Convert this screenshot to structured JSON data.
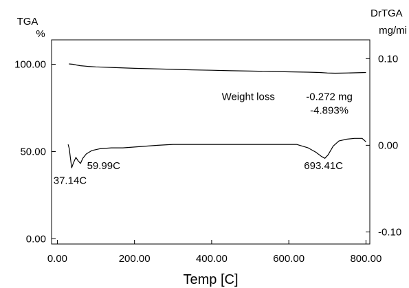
{
  "chart_data": {
    "type": "line",
    "title": "",
    "xlabel": "Temp [C]",
    "left_axis": {
      "label_line1": "TGA",
      "label_line2": "%",
      "ylim": [
        -3,
        114
      ],
      "ticks": [
        0,
        50,
        100
      ],
      "tick_labels": [
        "0.00",
        "50.00",
        "100.00"
      ]
    },
    "right_axis": {
      "label_line1": "DrTGA",
      "label_line2": "mg/mi",
      "ylim": [
        -0.114,
        0.1217
      ],
      "ticks": [
        -0.1,
        0,
        0.1
      ],
      "tick_labels": [
        "-0.10",
        "0.00",
        "0.10"
      ]
    },
    "xlim": [
      -15,
      810
    ],
    "x_ticks": [
      0,
      200,
      400,
      600,
      800
    ],
    "x_tick_labels": [
      "0.00",
      "200.00",
      "400.00",
      "600.00",
      "800.00"
    ],
    "grid": false,
    "series": [
      {
        "axis": "left",
        "x": [
          30,
          40,
          50,
          60,
          80,
          100,
          150,
          200,
          250,
          300,
          350,
          400,
          450,
          500,
          550,
          600,
          650,
          680,
          700,
          720,
          750,
          800
        ],
        "y": [
          100.2,
          100.0,
          99.6,
          99.2,
          98.8,
          98.5,
          98.1,
          97.7,
          97.4,
          97.1,
          96.8,
          96.6,
          96.3,
          96.1,
          95.9,
          95.7,
          95.5,
          95.3,
          95.0,
          94.9,
          95.0,
          95.3
        ]
      },
      {
        "axis": "right",
        "x": [
          28,
          31,
          34,
          37.14,
          42,
          48,
          54,
          59.99,
          66,
          75,
          90,
          110,
          140,
          170,
          200,
          230,
          260,
          300,
          340,
          380,
          420,
          460,
          500,
          540,
          580,
          620,
          650,
          670,
          685,
          693.41,
          702,
          715,
          730,
          750,
          770,
          790,
          800
        ],
        "y": [
          0.001,
          -0.004,
          -0.015,
          -0.026,
          -0.02,
          -0.014,
          -0.018,
          -0.021,
          -0.015,
          -0.01,
          -0.006,
          -0.004,
          -0.003,
          -0.003,
          -0.002,
          -0.001,
          0.0,
          0.001,
          0.001,
          0.001,
          0.001,
          0.001,
          0.001,
          0.001,
          0.001,
          0.001,
          -0.003,
          -0.008,
          -0.013,
          -0.015,
          -0.011,
          -0.001,
          0.005,
          0.007,
          0.008,
          0.008,
          0.004
        ]
      }
    ],
    "annotations": [
      {
        "id": "weight-loss",
        "text": "Weight loss",
        "x": 495,
        "y_left": 79.5
      },
      {
        "id": "loss-mg",
        "text": "-0.272 mg",
        "x": 705,
        "y_left": 79.5
      },
      {
        "id": "loss-pct",
        "text": "-4.893%",
        "x": 705,
        "y_left": 71.6
      },
      {
        "id": "peak-1",
        "text": "37.14C",
        "x": 33,
        "y_left": 31.5
      },
      {
        "id": "peak-2",
        "text": "59.99C",
        "x": 120,
        "y_left": 40.0
      },
      {
        "id": "peak-3",
        "text": "693.41C",
        "x": 690,
        "y_left": 40.0
      }
    ]
  }
}
